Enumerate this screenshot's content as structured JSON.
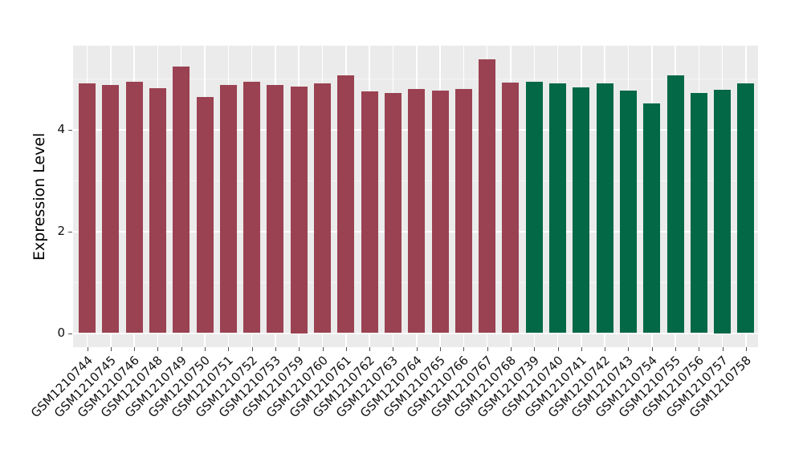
{
  "figure": {
    "background": "#FFFFFF",
    "panel_background": "#EBEBEB",
    "grid_major_color": "#FFFFFF",
    "grid_minor_color": "#F5F5F5",
    "tick_mark_color": "#555555",
    "axis_text_color": "#111111",
    "axis_title_color": "#000000"
  },
  "chart_data": {
    "type": "bar",
    "title": "",
    "xlabel": "",
    "ylabel": "Expression Level",
    "ylim": [
      -0.27,
      5.68
    ],
    "yticks_major": [
      0,
      2,
      4
    ],
    "yticks_minor": [
      1,
      3,
      5
    ],
    "grid": true,
    "legend": false,
    "x_tick_rotation_deg": 45,
    "categories": [
      "GSM1210744",
      "GSM1210745",
      "GSM1210746",
      "GSM1210748",
      "GSM1210749",
      "GSM1210750",
      "GSM1210751",
      "GSM1210752",
      "GSM1210753",
      "GSM1210759",
      "GSM1210760",
      "GSM1210761",
      "GSM1210762",
      "GSM1210763",
      "GSM1210764",
      "GSM1210765",
      "GSM1210766",
      "GSM1210767",
      "GSM1210768",
      "GSM1210739",
      "GSM1210740",
      "GSM1210741",
      "GSM1210742",
      "GSM1210743",
      "GSM1210754",
      "GSM1210755",
      "GSM1210756",
      "GSM1210757",
      "GSM1210758"
    ],
    "values": [
      4.91,
      4.87,
      4.94,
      4.81,
      5.23,
      4.64,
      4.87,
      4.93,
      4.87,
      4.85,
      4.91,
      5.06,
      4.75,
      4.71,
      4.8,
      4.76,
      4.79,
      5.38,
      4.92,
      4.93,
      4.9,
      4.83,
      4.9,
      4.77,
      4.51,
      5.06,
      4.72,
      4.78,
      4.9
    ],
    "groups": [
      "maroon",
      "maroon",
      "maroon",
      "maroon",
      "maroon",
      "maroon",
      "maroon",
      "maroon",
      "maroon",
      "maroon",
      "maroon",
      "maroon",
      "maroon",
      "maroon",
      "maroon",
      "maroon",
      "maroon",
      "maroon",
      "maroon",
      "green",
      "green",
      "green",
      "green",
      "green",
      "green",
      "green",
      "green",
      "green",
      "green"
    ],
    "group_colors": {
      "maroon": "#9A4252",
      "green": "#026845"
    }
  }
}
